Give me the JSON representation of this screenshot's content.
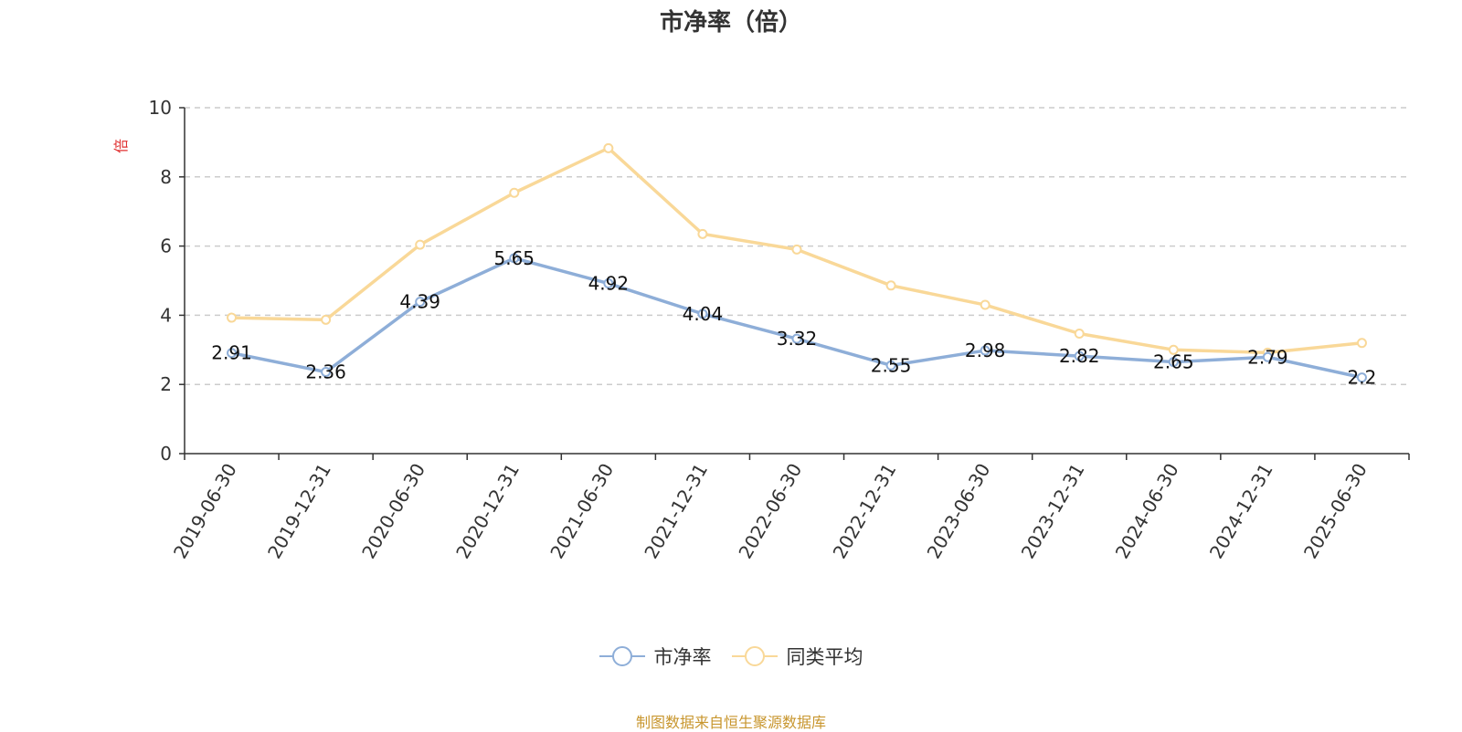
{
  "chart_data": {
    "type": "line",
    "title": "市净率（倍）",
    "ylabel": "倍",
    "xlabel": "",
    "ylim": [
      0,
      10
    ],
    "yticks": [
      0,
      2,
      4,
      6,
      8,
      10
    ],
    "grid": true,
    "legend_position": "bottom",
    "categories": [
      "2019-06-30",
      "2019-12-31",
      "2020-06-30",
      "2020-12-31",
      "2021-06-30",
      "2021-12-31",
      "2022-06-30",
      "2022-12-31",
      "2023-06-30",
      "2023-12-31",
      "2024-06-30",
      "2024-12-31",
      "2025-06-30"
    ],
    "series": [
      {
        "name": "市净率",
        "color": "#8eaed8",
        "show_labels": true,
        "values": [
          2.91,
          2.36,
          4.39,
          5.65,
          4.92,
          4.04,
          3.32,
          2.55,
          2.98,
          2.82,
          2.65,
          2.79,
          2.2
        ]
      },
      {
        "name": "同类平均",
        "color": "#f9d898",
        "show_labels": false,
        "values": [
          3.93,
          3.87,
          6.04,
          7.54,
          8.83,
          6.35,
          5.9,
          4.86,
          4.3,
          3.47,
          3.0,
          2.92,
          3.2
        ]
      }
    ],
    "source_note": "制图数据来自恒生聚源数据库"
  }
}
